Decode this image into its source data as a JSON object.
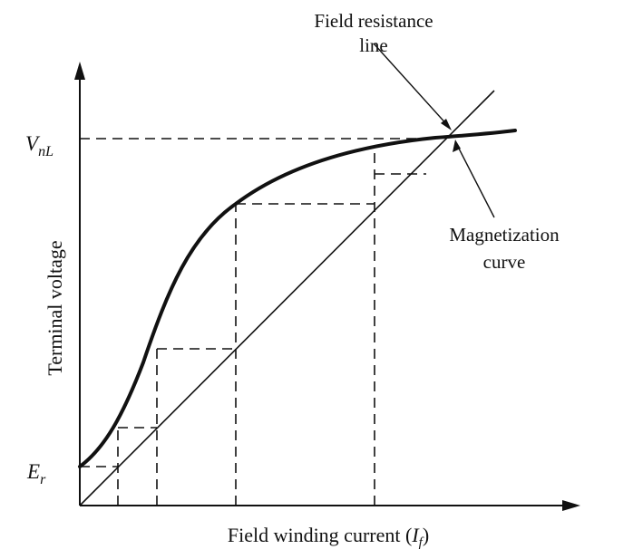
{
  "diagram": {
    "label_field_resistance_line_1": "Field resistance",
    "label_field_resistance_line_2": "line",
    "label_magnetization_1": "Magnetization",
    "label_magnetization_2": "curve",
    "y_axis_label": "Terminal voltage",
    "x_axis_label_prefix": "Field winding current (",
    "x_axis_label_symbol": "I",
    "x_axis_label_subscript": "f",
    "x_axis_label_suffix": ")",
    "vnl_main": "V",
    "vnl_sub": "nL",
    "er_main": "E",
    "er_sub": "r"
  }
}
